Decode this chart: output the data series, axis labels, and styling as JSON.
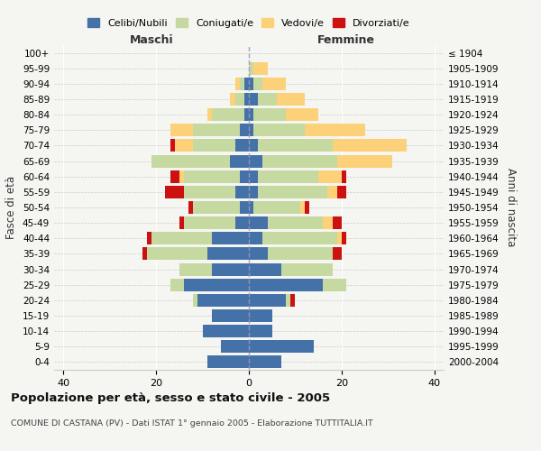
{
  "age_groups": [
    "0-4",
    "5-9",
    "10-14",
    "15-19",
    "20-24",
    "25-29",
    "30-34",
    "35-39",
    "40-44",
    "45-49",
    "50-54",
    "55-59",
    "60-64",
    "65-69",
    "70-74",
    "75-79",
    "80-84",
    "85-89",
    "90-94",
    "95-99",
    "100+"
  ],
  "birth_years": [
    "2000-2004",
    "1995-1999",
    "1990-1994",
    "1985-1989",
    "1980-1984",
    "1975-1979",
    "1970-1974",
    "1965-1969",
    "1960-1964",
    "1955-1959",
    "1950-1954",
    "1945-1949",
    "1940-1944",
    "1935-1939",
    "1930-1934",
    "1925-1929",
    "1920-1924",
    "1915-1919",
    "1910-1914",
    "1905-1909",
    "≤ 1904"
  ],
  "male": {
    "celibi": [
      9,
      6,
      10,
      8,
      11,
      14,
      8,
      9,
      8,
      3,
      2,
      3,
      2,
      4,
      3,
      2,
      1,
      1,
      1,
      0,
      0
    ],
    "coniugati": [
      0,
      0,
      0,
      0,
      1,
      3,
      7,
      13,
      13,
      11,
      10,
      11,
      12,
      17,
      9,
      10,
      7,
      2,
      1,
      0,
      0
    ],
    "vedovi": [
      0,
      0,
      0,
      0,
      0,
      0,
      0,
      0,
      0,
      0,
      0,
      0,
      1,
      0,
      4,
      5,
      1,
      1,
      1,
      0,
      0
    ],
    "divorziati": [
      0,
      0,
      0,
      0,
      0,
      0,
      0,
      1,
      1,
      1,
      1,
      4,
      2,
      0,
      1,
      0,
      0,
      0,
      0,
      0,
      0
    ]
  },
  "female": {
    "nubili": [
      7,
      14,
      5,
      5,
      8,
      16,
      7,
      4,
      3,
      4,
      1,
      2,
      2,
      3,
      2,
      1,
      1,
      2,
      1,
      0,
      0
    ],
    "coniugate": [
      0,
      0,
      0,
      0,
      1,
      5,
      11,
      14,
      16,
      12,
      10,
      15,
      13,
      16,
      16,
      11,
      7,
      4,
      2,
      1,
      0
    ],
    "vedove": [
      0,
      0,
      0,
      0,
      0,
      0,
      0,
      0,
      1,
      2,
      1,
      2,
      5,
      12,
      16,
      13,
      7,
      6,
      5,
      3,
      0
    ],
    "divorziate": [
      0,
      0,
      0,
      0,
      1,
      0,
      0,
      2,
      1,
      2,
      1,
      2,
      1,
      0,
      0,
      0,
      0,
      0,
      0,
      0,
      0
    ]
  },
  "colors": {
    "celibi": "#4472a8",
    "coniugati": "#c5d9a0",
    "vedovi": "#fcd17a",
    "divorziati": "#cc1111"
  },
  "xlim": [
    -42,
    42
  ],
  "xticks": [
    -40,
    -20,
    0,
    20,
    40
  ],
  "xticklabels": [
    "40",
    "20",
    "0",
    "20",
    "40"
  ],
  "title": "Popolazione per età, sesso e stato civile - 2005",
  "subtitle": "COMUNE DI CASTANA (PV) - Dati ISTAT 1° gennaio 2005 - Elaborazione TUTTITALIA.IT",
  "ylabel_left": "Fasce di età",
  "ylabel_right": "Anni di nascita",
  "label_maschi": "Maschi",
  "label_femmine": "Femmine",
  "legend_labels": [
    "Celibi/Nubili",
    "Coniugati/e",
    "Vedovi/e",
    "Divorziati/e"
  ],
  "bg_color": "#f5f5f2"
}
